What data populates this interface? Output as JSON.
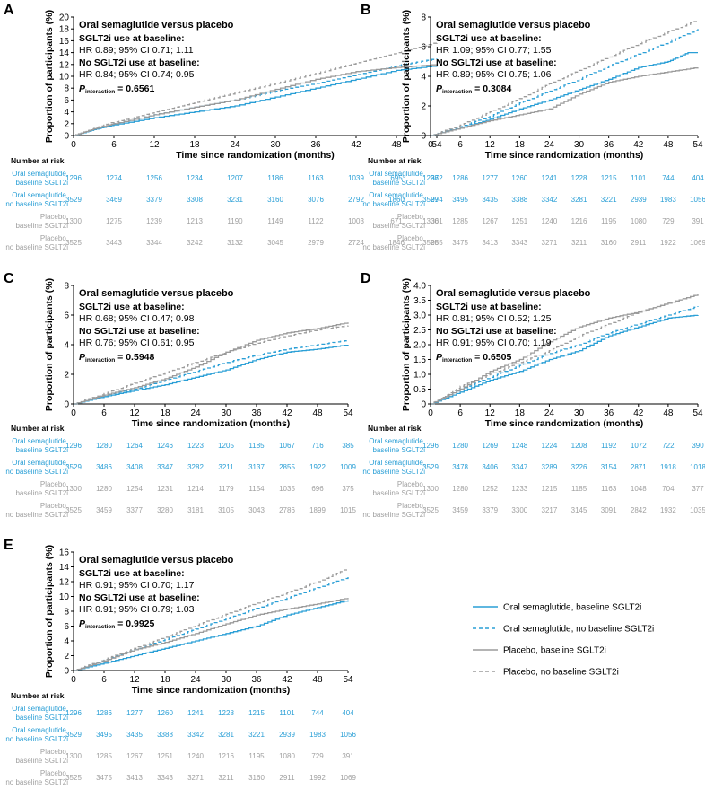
{
  "colors": {
    "semaglutide": "#2a9fd6",
    "placebo": "#9b9b9b",
    "risk_placebo": "#a0a0a0",
    "ink": "#000000"
  },
  "common": {
    "xlabel": "Time since randomization (months)",
    "ylabel": "Proportion of participants (%)",
    "risk_title": "Number at risk",
    "risk_row_labels": [
      [
        "Oral semaglutide,",
        "baseline SGLT2i"
      ],
      [
        "Oral semaglutide,",
        "no baseline SGLT2i"
      ],
      [
        "Placebo,",
        "baseline SGLT2i"
      ],
      [
        "Placebo,",
        "no baseline SGLT2i"
      ]
    ],
    "annot_title": "Oral semaglutide versus placebo",
    "annot_sglt2i": "SGLT2i use at baseline:",
    "annot_no_sglt2i": "No SGLT2i use at baseline:",
    "p_label_p": "P",
    "p_label_sub": "interaction"
  },
  "legend": {
    "items": [
      "Oral semaglutide, baseline SGLT2i",
      "Oral semaglutide, no baseline SGLT2i",
      "Placebo, baseline SGLT2i",
      "Placebo, no baseline SGLT2i"
    ]
  },
  "chart_data": [
    {
      "panel": "A",
      "type": "line",
      "x_ticks": [
        0,
        6,
        12,
        18,
        24,
        30,
        36,
        42,
        48,
        54
      ],
      "y_ticks": [
        0,
        2,
        4,
        6,
        8,
        10,
        12,
        14,
        16,
        18,
        20
      ],
      "y_tick_labels": [
        "0",
        "2",
        "4",
        "6",
        "8",
        "10",
        "12",
        "14",
        "16",
        "18",
        "20"
      ],
      "ylim": [
        0,
        20
      ],
      "xlim": [
        0,
        54
      ],
      "hr_sglt2i": "HR 0.89; 95% CI 0.71; 1.11",
      "hr_no_sglt2i": "HR 0.84; 95% CI 0.74; 0.95",
      "p_value": " = 0.6561",
      "series": [
        {
          "name": "Oral semaglutide, baseline SGLT2i",
          "x": [
            0,
            3,
            6,
            12,
            18,
            24,
            30,
            36,
            42,
            48,
            54
          ],
          "y": [
            0,
            1,
            1.8,
            3,
            4,
            5,
            6.5,
            8,
            9.5,
            11,
            11.8
          ]
        },
        {
          "name": "Oral semaglutide, no baseline SGLT2i",
          "x": [
            0,
            3,
            6,
            12,
            18,
            24,
            30,
            36,
            42,
            48,
            54
          ],
          "y": [
            0,
            1,
            2,
            3.5,
            4.8,
            6,
            7.5,
            8.8,
            10.3,
            11.8,
            13
          ]
        },
        {
          "name": "Placebo, baseline SGLT2i",
          "x": [
            0,
            3,
            6,
            12,
            18,
            24,
            30,
            36,
            42,
            48,
            54
          ],
          "y": [
            0,
            1.1,
            2,
            3.5,
            4.8,
            6,
            7.8,
            9.5,
            10.8,
            11.5,
            12
          ]
        },
        {
          "name": "Placebo, no baseline SGLT2i",
          "x": [
            0,
            3,
            6,
            12,
            18,
            24,
            30,
            36,
            42,
            48,
            54
          ],
          "y": [
            0,
            1.2,
            2.3,
            4,
            5.6,
            7.2,
            8.8,
            10.5,
            12.3,
            14,
            15.8
          ]
        }
      ],
      "risk": [
        [
          "1296",
          "1274",
          "1256",
          "1234",
          "1207",
          "1186",
          "1163",
          "1039",
          "695",
          "372"
        ],
        [
          "3529",
          "3469",
          "3379",
          "3308",
          "3231",
          "3160",
          "3076",
          "2792",
          "1860",
          "974"
        ],
        [
          "1300",
          "1275",
          "1239",
          "1213",
          "1190",
          "1149",
          "1122",
          "1003",
          "671",
          "361"
        ],
        [
          "3525",
          "3443",
          "3344",
          "3242",
          "3132",
          "3045",
          "2979",
          "2724",
          "1846",
          "985"
        ]
      ]
    },
    {
      "panel": "B",
      "type": "line",
      "x_ticks": [
        0,
        6,
        12,
        18,
        24,
        30,
        36,
        42,
        48,
        54
      ],
      "y_ticks": [
        0,
        2,
        4,
        6,
        8
      ],
      "y_tick_labels": [
        "0",
        "2",
        "4",
        "6",
        "8"
      ],
      "ylim": [
        0,
        8
      ],
      "xlim": [
        0,
        54
      ],
      "hr_sglt2i": "HR 1.09; 95% CI 0.77; 1.55",
      "hr_no_sglt2i": "HR 0.89; 95% CI 0.75; 1.06",
      "p_value": " = 0.3084",
      "series": [
        {
          "name": "Oral semaglutide, baseline SGLT2i",
          "x": [
            0,
            6,
            12,
            18,
            24,
            30,
            36,
            42,
            48,
            52,
            54
          ],
          "y": [
            0,
            0.5,
            1.1,
            1.8,
            2.4,
            3.1,
            3.8,
            4.6,
            5,
            5.6,
            5.6
          ]
        },
        {
          "name": "Oral semaglutide, no baseline SGLT2i",
          "x": [
            0,
            6,
            12,
            18,
            24,
            30,
            36,
            42,
            48,
            54
          ],
          "y": [
            0,
            0.6,
            1.3,
            2.2,
            3,
            3.8,
            4.7,
            5.5,
            6.3,
            7.2
          ]
        },
        {
          "name": "Placebo, baseline SGLT2i",
          "x": [
            0,
            6,
            12,
            18,
            24,
            30,
            36,
            42,
            48,
            54
          ],
          "y": [
            0,
            0.5,
            1,
            1.4,
            1.8,
            2.8,
            3.6,
            4,
            4.3,
            4.6
          ]
        },
        {
          "name": "Placebo, no baseline SGLT2i",
          "x": [
            0,
            6,
            12,
            18,
            24,
            30,
            36,
            42,
            48,
            54
          ],
          "y": [
            0,
            0.7,
            1.6,
            2.5,
            3.5,
            4.4,
            5.3,
            6.2,
            7,
            7.8
          ]
        }
      ],
      "risk": [
        [
          "1296",
          "1286",
          "1277",
          "1260",
          "1241",
          "1228",
          "1215",
          "1101",
          "744",
          "404"
        ],
        [
          "3529",
          "3495",
          "3435",
          "3388",
          "3342",
          "3281",
          "3221",
          "2939",
          "1983",
          "1056"
        ],
        [
          "1300",
          "1285",
          "1267",
          "1251",
          "1240",
          "1216",
          "1195",
          "1080",
          "729",
          "391"
        ],
        [
          "3525",
          "3475",
          "3413",
          "3343",
          "3271",
          "3211",
          "3160",
          "2911",
          "1922",
          "1069"
        ]
      ]
    },
    {
      "panel": "C",
      "type": "line",
      "x_ticks": [
        0,
        6,
        12,
        18,
        24,
        30,
        36,
        42,
        48,
        54
      ],
      "y_ticks": [
        0,
        2,
        4,
        6,
        8
      ],
      "y_tick_labels": [
        "0",
        "2",
        "4",
        "6",
        "8"
      ],
      "ylim": [
        0,
        8
      ],
      "xlim": [
        0,
        54
      ],
      "hr_sglt2i": "HR 0.68; 95% CI 0.47; 0.98",
      "hr_no_sglt2i": "HR 0.76; 95% CI 0.61; 0.95",
      "p_value": " = 0.5948",
      "series": [
        {
          "name": "Oral semaglutide, baseline SGLT2i",
          "x": [
            0,
            6,
            12,
            18,
            24,
            30,
            36,
            42,
            48,
            54
          ],
          "y": [
            0,
            0.5,
            0.9,
            1.3,
            1.8,
            2.3,
            3,
            3.5,
            3.7,
            4
          ]
        },
        {
          "name": "Oral semaglutide, no baseline SGLT2i",
          "x": [
            0,
            6,
            12,
            18,
            24,
            30,
            36,
            42,
            48,
            54
          ],
          "y": [
            0,
            0.6,
            1,
            1.6,
            2.2,
            2.8,
            3.3,
            3.7,
            4,
            4.3
          ]
        },
        {
          "name": "Placebo, baseline SGLT2i",
          "x": [
            0,
            6,
            12,
            18,
            24,
            30,
            36,
            42,
            48,
            54
          ],
          "y": [
            0,
            0.6,
            1.1,
            1.7,
            2.5,
            3.5,
            4.3,
            4.8,
            5.1,
            5.5
          ]
        },
        {
          "name": "Placebo, no baseline SGLT2i",
          "x": [
            0,
            6,
            12,
            18,
            24,
            30,
            36,
            42,
            48,
            54
          ],
          "y": [
            0,
            0.7,
            1.4,
            2.1,
            2.8,
            3.5,
            4.1,
            4.6,
            5,
            5.3
          ]
        }
      ],
      "risk": [
        [
          "1296",
          "1280",
          "1264",
          "1246",
          "1223",
          "1205",
          "1185",
          "1067",
          "716",
          "385"
        ],
        [
          "3529",
          "3486",
          "3408",
          "3347",
          "3282",
          "3211",
          "3137",
          "2855",
          "1922",
          "1009"
        ],
        [
          "1300",
          "1280",
          "1254",
          "1231",
          "1214",
          "1179",
          "1154",
          "1035",
          "696",
          "375"
        ],
        [
          "3525",
          "3459",
          "3377",
          "3280",
          "3181",
          "3105",
          "3043",
          "2786",
          "1899",
          "1015"
        ]
      ]
    },
    {
      "panel": "D",
      "type": "line",
      "x_ticks": [
        0,
        6,
        12,
        18,
        24,
        30,
        36,
        42,
        48,
        54
      ],
      "y_ticks": [
        0,
        0.5,
        1,
        1.5,
        2,
        2.5,
        3,
        3.5,
        4
      ],
      "y_tick_labels": [
        "0",
        "0.5",
        "1.0",
        "1.5",
        "2.0",
        "2.5",
        "3.0",
        "3.5",
        "4.0"
      ],
      "ylim": [
        0,
        4
      ],
      "xlim": [
        0,
        54
      ],
      "hr_sglt2i": "HR 0.81; 95% CI 0.52; 1.25",
      "hr_no_sglt2i": "HR 0.91; 95% CI 0.70; 1.19",
      "p_value": " = 0.6505",
      "series": [
        {
          "name": "Oral semaglutide, baseline SGLT2i",
          "x": [
            0,
            6,
            12,
            18,
            24,
            30,
            36,
            42,
            48,
            54
          ],
          "y": [
            0,
            0.4,
            0.8,
            1.1,
            1.5,
            1.8,
            2.3,
            2.6,
            2.9,
            3
          ]
        },
        {
          "name": "Oral semaglutide, no baseline SGLT2i",
          "x": [
            0,
            6,
            12,
            18,
            24,
            30,
            36,
            42,
            48,
            54
          ],
          "y": [
            0,
            0.5,
            0.9,
            1.3,
            1.7,
            2,
            2.4,
            2.7,
            3,
            3.3
          ]
        },
        {
          "name": "Placebo, baseline SGLT2i",
          "x": [
            0,
            6,
            12,
            18,
            24,
            30,
            36,
            42,
            48,
            54
          ],
          "y": [
            0,
            0.5,
            1.1,
            1.5,
            2.1,
            2.6,
            2.9,
            3.1,
            3.4,
            3.7
          ]
        },
        {
          "name": "Placebo, no baseline SGLT2i",
          "x": [
            0,
            6,
            12,
            18,
            24,
            30,
            36,
            42,
            48,
            54
          ],
          "y": [
            0,
            0.6,
            1,
            1.4,
            1.8,
            2.3,
            2.7,
            3.1,
            3.4,
            3.7
          ]
        }
      ],
      "risk": [
        [
          "1296",
          "1280",
          "1269",
          "1248",
          "1224",
          "1208",
          "1192",
          "1072",
          "722",
          "390"
        ],
        [
          "3529",
          "3478",
          "3406",
          "3347",
          "3289",
          "3226",
          "3154",
          "2871",
          "1918",
          "1018"
        ],
        [
          "1300",
          "1280",
          "1252",
          "1233",
          "1215",
          "1185",
          "1163",
          "1048",
          "704",
          "377"
        ],
        [
          "3525",
          "3459",
          "3379",
          "3300",
          "3217",
          "3145",
          "3091",
          "2842",
          "1932",
          "1035"
        ]
      ]
    },
    {
      "panel": "E",
      "type": "line",
      "x_ticks": [
        0,
        6,
        12,
        18,
        24,
        30,
        36,
        42,
        48,
        54
      ],
      "y_ticks": [
        0,
        2,
        4,
        6,
        8,
        10,
        12,
        14,
        16
      ],
      "y_tick_labels": [
        "0",
        "2",
        "4",
        "6",
        "8",
        "10",
        "12",
        "14",
        "16"
      ],
      "ylim": [
        0,
        16
      ],
      "xlim": [
        0,
        54
      ],
      "hr_sglt2i": "HR 0.91; 95% CI 0.70; 1.17",
      "hr_no_sglt2i": "HR 0.91; 95% CI 0.79; 1.03",
      "p_value": " = 0.9925",
      "series": [
        {
          "name": "Oral semaglutide, baseline SGLT2i",
          "x": [
            0,
            6,
            12,
            18,
            24,
            30,
            36,
            42,
            48,
            54
          ],
          "y": [
            0,
            1,
            2,
            3,
            4,
            5,
            6,
            7.5,
            8.5,
            9.5
          ]
        },
        {
          "name": "Oral semaglutide, no baseline SGLT2i",
          "x": [
            0,
            6,
            12,
            18,
            24,
            30,
            36,
            42,
            48,
            54
          ],
          "y": [
            0,
            1.4,
            2.8,
            4.2,
            5.6,
            7,
            8.4,
            9.8,
            11.2,
            12.6
          ]
        },
        {
          "name": "Placebo, baseline SGLT2i",
          "x": [
            0,
            6,
            12,
            18,
            24,
            30,
            36,
            42,
            48,
            54
          ],
          "y": [
            0,
            1.3,
            2.8,
            3.8,
            5,
            6.3,
            7.5,
            8.3,
            9,
            9.8
          ]
        },
        {
          "name": "Placebo, no baseline SGLT2i",
          "x": [
            0,
            6,
            12,
            18,
            24,
            30,
            36,
            42,
            48,
            54
          ],
          "y": [
            0,
            1.5,
            3,
            4.5,
            6.1,
            7.6,
            9.1,
            10.5,
            12,
            13.8
          ]
        }
      ],
      "risk": [
        [
          "1296",
          "1286",
          "1277",
          "1260",
          "1241",
          "1228",
          "1215",
          "1101",
          "744",
          "404"
        ],
        [
          "3529",
          "3495",
          "3435",
          "3388",
          "3342",
          "3281",
          "3221",
          "2939",
          "1983",
          "1056"
        ],
        [
          "1300",
          "1285",
          "1267",
          "1251",
          "1240",
          "1216",
          "1195",
          "1080",
          "729",
          "391"
        ],
        [
          "3525",
          "3475",
          "3413",
          "3343",
          "3271",
          "3211",
          "3160",
          "2911",
          "1992",
          "1069"
        ]
      ]
    }
  ]
}
